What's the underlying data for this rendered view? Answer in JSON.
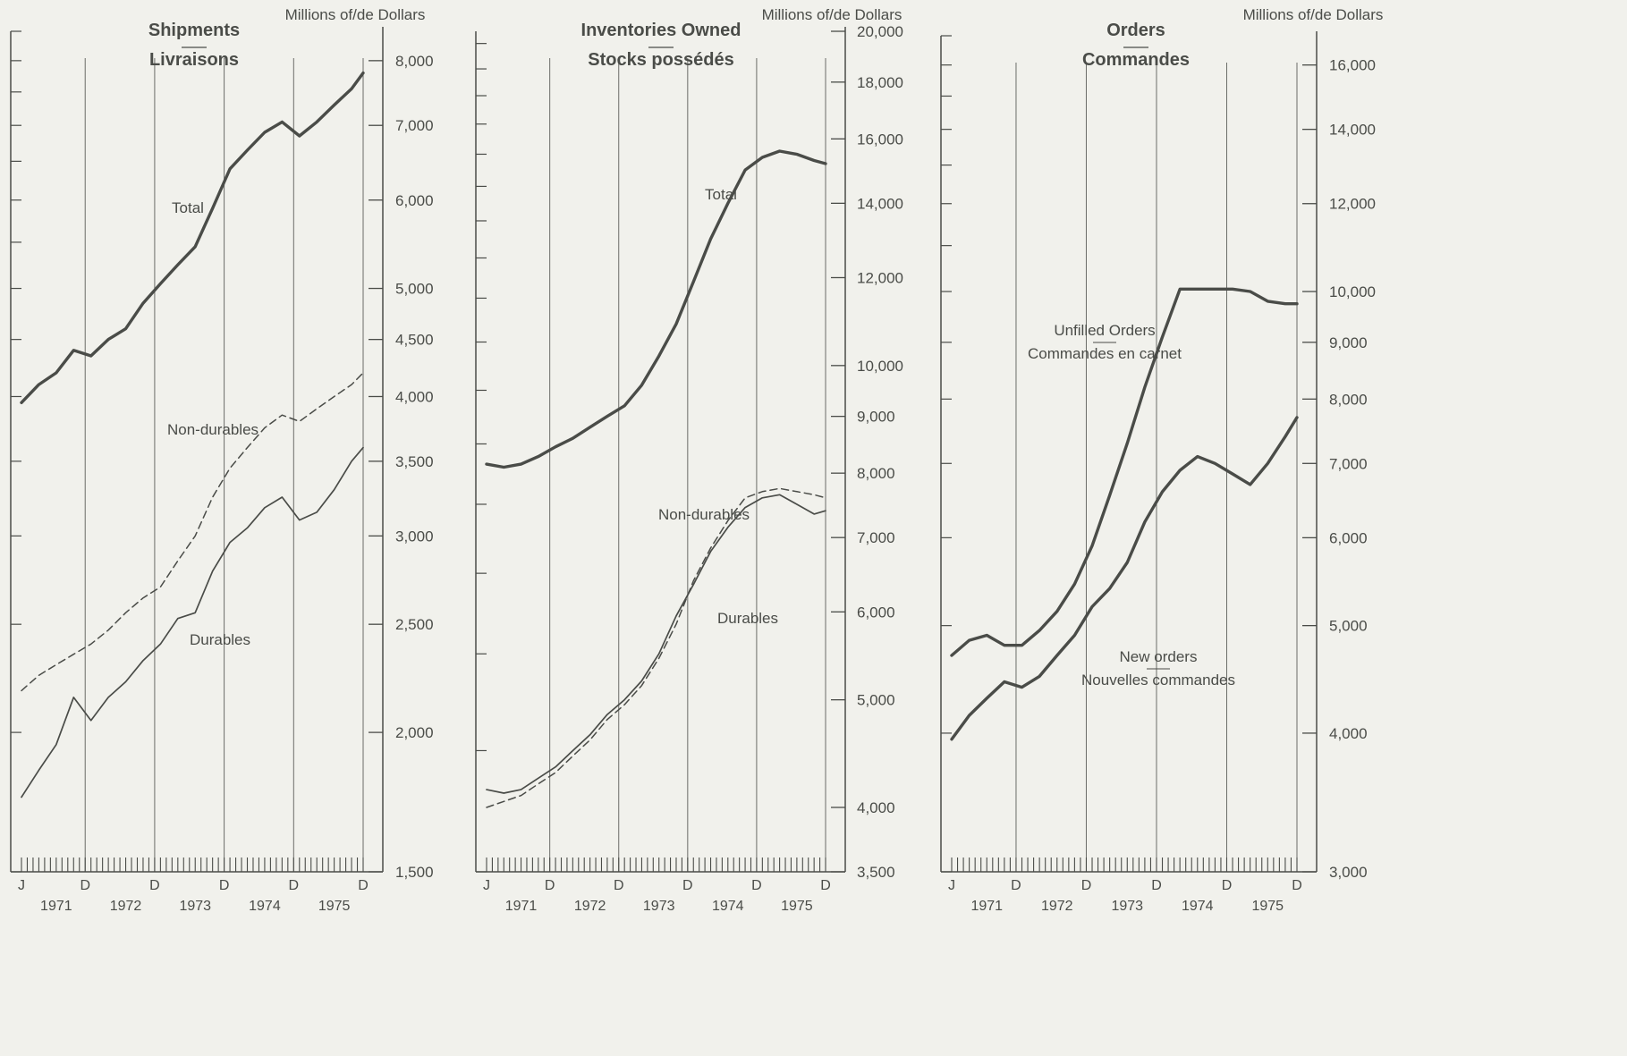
{
  "chart_data": [
    {
      "type": "line",
      "title": "Shipments",
      "subtitle": "Livraisons",
      "unit_label": "Millions of/de Dollars",
      "y_scale": "log",
      "ylim": [
        1500,
        8500
      ],
      "y_ticks": [
        1500,
        2000,
        2500,
        3000,
        3500,
        4000,
        4500,
        5000,
        6000,
        7000,
        8000
      ],
      "y_tick_labels": [
        "1,500",
        "2,000",
        "2,500",
        "3,000",
        "3,500",
        "4,000",
        "4,500",
        "5,000",
        "6,000",
        "7,000",
        "8,000"
      ],
      "x_range": [
        "1971-01",
        "1975-12"
      ],
      "month_labels": [
        "J",
        "D",
        "D",
        "D",
        "D",
        "D"
      ],
      "year_labels": [
        "1971",
        "1972",
        "1973",
        "1974",
        "1975"
      ],
      "x": [
        "1971-01",
        "1971-04",
        "1971-07",
        "1971-10",
        "1972-01",
        "1972-04",
        "1972-07",
        "1972-10",
        "1973-01",
        "1973-04",
        "1973-07",
        "1973-10",
        "1974-01",
        "1974-04",
        "1974-07",
        "1974-10",
        "1975-01",
        "1975-04",
        "1975-07",
        "1975-10",
        "1975-12"
      ],
      "series": [
        {
          "name": "Total",
          "style": "solid-bold",
          "values": [
            3950,
            4100,
            4200,
            4400,
            4350,
            4500,
            4600,
            4850,
            5050,
            5250,
            5450,
            5900,
            6400,
            6650,
            6900,
            7050,
            6850,
            7050,
            7300,
            7550,
            7800
          ]
        },
        {
          "name": "Non-durables",
          "style": "dashed",
          "values": [
            2180,
            2250,
            2300,
            2350,
            2400,
            2470,
            2560,
            2640,
            2700,
            2850,
            3000,
            3250,
            3450,
            3600,
            3750,
            3850,
            3800,
            3900,
            4000,
            4100,
            4200
          ]
        },
        {
          "name": "Durables",
          "style": "solid-thin",
          "values": [
            1750,
            1850,
            1950,
            2150,
            2050,
            2150,
            2220,
            2320,
            2400,
            2530,
            2560,
            2790,
            2960,
            3050,
            3180,
            3250,
            3100,
            3150,
            3300,
            3500,
            3600
          ]
        }
      ]
    },
    {
      "type": "line",
      "title": "Inventories Owned",
      "subtitle": "Stocks possédés",
      "unit_label": "Millions of/de Dollars",
      "y_scale": "log",
      "ylim": [
        3500,
        20000
      ],
      "y_ticks": [
        3500,
        4000,
        5000,
        6000,
        7000,
        8000,
        9000,
        10000,
        12000,
        14000,
        16000,
        18000,
        20000
      ],
      "y_tick_labels": [
        "3,500",
        "4,000",
        "5,000",
        "6,000",
        "7,000",
        "8,000",
        "9,000",
        "10,000",
        "12,000",
        "14,000",
        "16,000",
        "18,000",
        "20,000"
      ],
      "x_range": [
        "1971-01",
        "1975-12"
      ],
      "month_labels": [
        "J",
        "D",
        "D",
        "D",
        "D",
        "D"
      ],
      "year_labels": [
        "1971",
        "1972",
        "1973",
        "1974",
        "1975"
      ],
      "x": [
        "1971-01",
        "1971-04",
        "1971-07",
        "1971-10",
        "1972-01",
        "1972-04",
        "1972-07",
        "1972-10",
        "1973-01",
        "1973-04",
        "1973-07",
        "1973-10",
        "1974-01",
        "1974-04",
        "1974-07",
        "1974-10",
        "1975-01",
        "1975-04",
        "1975-07",
        "1975-10",
        "1975-12"
      ],
      "series": [
        {
          "name": "Total",
          "style": "solid-bold",
          "values": [
            8150,
            8100,
            8150,
            8280,
            8450,
            8600,
            8800,
            9000,
            9200,
            9600,
            10200,
            10900,
            11900,
            13000,
            14000,
            15000,
            15400,
            15600,
            15500,
            15300,
            15200
          ]
        },
        {
          "name": "Non-durables",
          "style": "dashed",
          "values": [
            4000,
            4050,
            4100,
            4200,
            4300,
            4450,
            4600,
            4800,
            4950,
            5150,
            5450,
            5850,
            6400,
            6850,
            7250,
            7600,
            7700,
            7750,
            7700,
            7650,
            7600
          ]
        },
        {
          "name": "Durables",
          "style": "solid-thin",
          "values": [
            4150,
            4120,
            4150,
            4250,
            4350,
            4500,
            4650,
            4850,
            5000,
            5200,
            5500,
            5950,
            6350,
            6800,
            7150,
            7450,
            7600,
            7650,
            7500,
            7350,
            7400
          ]
        }
      ]
    },
    {
      "type": "line",
      "title": "Orders",
      "subtitle": "Commandes",
      "unit_label": "Millions of/de Dollars",
      "y_scale": "log",
      "ylim": [
        3000,
        17000
      ],
      "y_ticks": [
        3000,
        4000,
        5000,
        6000,
        7000,
        8000,
        9000,
        10000,
        12000,
        14000,
        16000
      ],
      "y_tick_labels": [
        "3,000",
        "4,000",
        "5,000",
        "6,000",
        "7,000",
        "8,000",
        "9,000",
        "10,000",
        "12,000",
        "14,000",
        "16,000"
      ],
      "x_range": [
        "1971-01",
        "1975-12"
      ],
      "month_labels": [
        "J",
        "D",
        "D",
        "D",
        "D",
        "D"
      ],
      "year_labels": [
        "1971",
        "1972",
        "1973",
        "1974",
        "1975"
      ],
      "x": [
        "1971-01",
        "1971-04",
        "1971-07",
        "1971-10",
        "1972-01",
        "1972-04",
        "1972-07",
        "1972-10",
        "1973-01",
        "1973-04",
        "1973-07",
        "1973-10",
        "1974-01",
        "1974-04",
        "1974-07",
        "1974-10",
        "1975-01",
        "1975-04",
        "1975-07",
        "1975-10",
        "1975-12"
      ],
      "series": [
        {
          "name": "Unfilled Orders / Commandes en carnet",
          "label_line1": "Unfilled Orders",
          "label_line2": "Commandes en carnet",
          "style": "solid-bold",
          "values": [
            4700,
            4850,
            4900,
            4800,
            4800,
            4950,
            5150,
            5450,
            5900,
            6550,
            7300,
            8200,
            9100,
            10050,
            10050,
            10050,
            10050,
            10000,
            9800,
            9750,
            9750
          ]
        },
        {
          "name": "New orders / Nouvelles commandes",
          "label_line1": "New orders",
          "label_line2": "Nouvelles commandes",
          "style": "solid-bold",
          "values": [
            3950,
            4150,
            4300,
            4450,
            4400,
            4500,
            4700,
            4900,
            5200,
            5400,
            5700,
            6200,
            6600,
            6900,
            7100,
            7000,
            6850,
            6700,
            7000,
            7400,
            7700
          ]
        }
      ]
    }
  ]
}
